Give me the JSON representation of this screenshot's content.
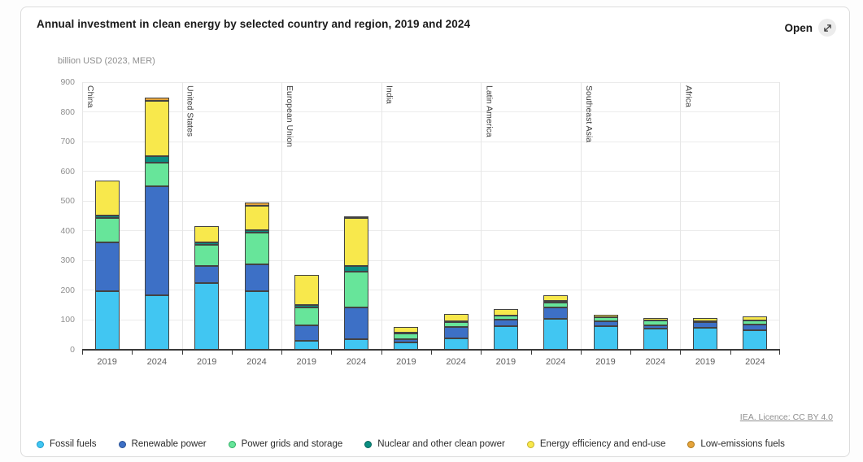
{
  "header": {
    "title": "Annual investment in clean energy by selected country and region, 2019 and 2024",
    "open_label": "Open"
  },
  "footer": {
    "license_text": "IEA. Licence: CC BY 4.0"
  },
  "chart_data": {
    "type": "bar",
    "stacked": true,
    "title": "Annual investment in clean energy by selected country and region, 2019 and 2024",
    "ylabel": "billion USD (2023, MER)",
    "xlabel": "",
    "ylim": [
      0,
      900
    ],
    "yticks": [
      0,
      100,
      200,
      300,
      400,
      500,
      600,
      700,
      800,
      900
    ],
    "grid": "horizontal",
    "legend_position": "bottom",
    "groups": [
      "China",
      "United States",
      "European Union",
      "India",
      "Latin America",
      "Southeast Asia",
      "Africa"
    ],
    "years_per_group": [
      "2019",
      "2024"
    ],
    "bar_border_color": "#434343",
    "series": [
      {
        "name": "Fossil fuels",
        "color": "#41C6F2",
        "dot_border": "#1d9ccc",
        "values": [
          197,
          183,
          225,
          196,
          29,
          36,
          25,
          38,
          79,
          105,
          79,
          70,
          75,
          66
        ]
      },
      {
        "name": "Renewable power",
        "color": "#3D70C6",
        "dot_border": "#2a5193",
        "values": [
          165,
          366,
          57,
          90,
          53,
          107,
          11,
          38,
          22,
          36,
          17,
          11,
          18,
          18
        ]
      },
      {
        "name": "Power grids and storage",
        "color": "#67E59A",
        "dot_border": "#2fae64",
        "values": [
          81,
          81,
          71,
          108,
          59,
          120,
          20,
          18,
          15,
          18,
          13,
          17,
          3,
          14
        ]
      },
      {
        "name": "Nuclear and other clean power",
        "color": "#0B8E81",
        "dot_border": "#02645a",
        "values": [
          8,
          22,
          7,
          9,
          9,
          19,
          2,
          2,
          0,
          5,
          0,
          0,
          0,
          0
        ]
      },
      {
        "name": "Energy efficiency and end-use",
        "color": "#F8E84C",
        "dot_border": "#c5b12a",
        "values": [
          119,
          186,
          57,
          82,
          102,
          160,
          19,
          24,
          20,
          20,
          9,
          9,
          11,
          13
        ]
      },
      {
        "name": "Low-emissions fuels",
        "color": "#E5A43C",
        "dot_border": "#ad7718",
        "values": [
          0,
          10,
          0,
          9,
          0,
          5,
          0,
          0,
          0,
          0,
          0,
          0,
          0,
          0
        ]
      }
    ]
  }
}
